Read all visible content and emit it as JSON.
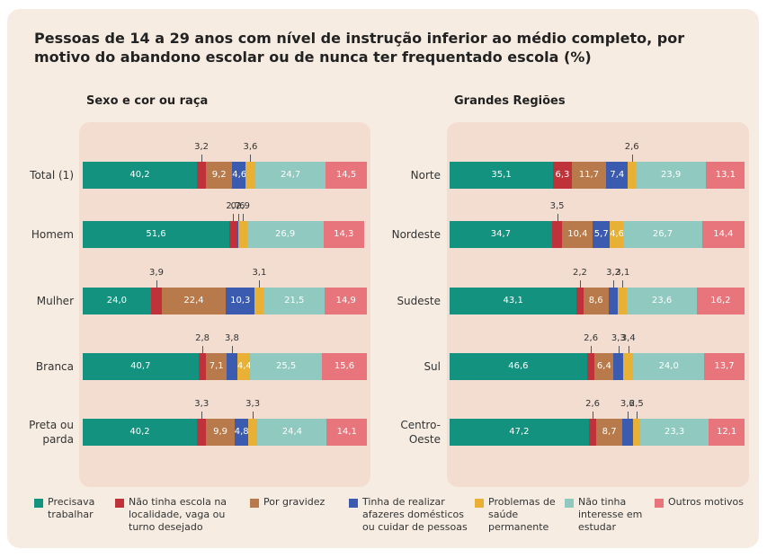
{
  "title": "Pessoas de 14 a 29 anos com nível de instrução inferior ao médio completo, por motivo do abandono escolar ou de nunca ter frequentado escola (%)",
  "chart_data": [
    {
      "type": "bar",
      "title": "Sexo e cor ou raça",
      "categories": [
        "Total (1)",
        "Homem",
        "Mulher",
        "Branca",
        "Preta ou parda"
      ],
      "series": [
        {
          "name": "Precisava trabalhar",
          "color": "#13937f",
          "values": [
            40.2,
            51.6,
            24.0,
            40.7,
            40.2
          ],
          "value_labels": [
            "40,2",
            "51,6",
            "24,0",
            "40,7",
            "40,2"
          ]
        },
        {
          "name": "Não tinha escola na localidade, vaga ou turno desejado",
          "color": "#c0323a",
          "values": [
            3.2,
            2.7,
            3.9,
            2.8,
            3.3
          ],
          "value_labels": [
            "3,2",
            "2,7",
            "3,9",
            "2,8",
            "3,3"
          ]
        },
        {
          "name": "Por gravidez",
          "color": "#b87a4a",
          "values": [
            9.2,
            null,
            22.4,
            7.1,
            9.9
          ],
          "value_labels": [
            "9,2",
            null,
            "22,4",
            "7,1",
            "9,9"
          ]
        },
        {
          "name": "Tinha de realizar afazeres domésticos ou cuidar de pessoas",
          "color": "#3a5bb0",
          "values": [
            4.6,
            0.6,
            10.3,
            3.8,
            4.8
          ],
          "value_labels": [
            "4,6",
            "0,6",
            "10,3",
            "3,8",
            "4,8"
          ]
        },
        {
          "name": "Problemas de saúde permanente",
          "color": "#e8b034",
          "values": [
            3.6,
            2.9,
            3.1,
            4.4,
            3.3
          ],
          "value_labels": [
            "3,6",
            "2,9",
            "3,1",
            "4,4",
            "3,3"
          ]
        },
        {
          "name": "Não tinha interesse em estudar",
          "color": "#8fc9c0",
          "values": [
            24.7,
            26.9,
            21.5,
            25.5,
            24.4
          ],
          "value_labels": [
            "24,7",
            "26,9",
            "21,5",
            "25,5",
            "24,4"
          ]
        },
        {
          "name": "Outros motivos",
          "color": "#e8757b",
          "values": [
            14.5,
            14.3,
            14.9,
            15.6,
            14.1
          ],
          "value_labels": [
            "14,5",
            "14,3",
            "14,9",
            "15,6",
            "14,1"
          ]
        }
      ]
    },
    {
      "type": "bar",
      "title": "Grandes Regiões",
      "categories": [
        "Norte",
        "Nordeste",
        "Sudeste",
        "Sul",
        "Centro-Oeste"
      ],
      "series": [
        {
          "name": "Precisava trabalhar",
          "color": "#13937f",
          "values": [
            35.1,
            34.7,
            43.1,
            46.6,
            47.2
          ],
          "value_labels": [
            "35,1",
            "34,7",
            "43,1",
            "46,6",
            "47,2"
          ]
        },
        {
          "name": "Não tinha escola na localidade, vaga ou turno desejado",
          "color": "#c0323a",
          "values": [
            6.3,
            3.5,
            2.2,
            2.6,
            2.6
          ],
          "value_labels": [
            "6,3",
            "3,5",
            "2,2",
            "2,6",
            "2,6"
          ]
        },
        {
          "name": "Por gravidez",
          "color": "#b87a4a",
          "values": [
            11.7,
            10.4,
            8.6,
            6.4,
            8.7
          ],
          "value_labels": [
            "11,7",
            "10,4",
            "8,6",
            "6,4",
            "8,7"
          ]
        },
        {
          "name": "Tinha de realizar afazeres domésticos ou cuidar de pessoas",
          "color": "#3a5bb0",
          "values": [
            7.4,
            5.7,
            3.2,
            3.3,
            3.6
          ],
          "value_labels": [
            "7,4",
            "5,7",
            "3,2",
            "3,3",
            "3,6"
          ]
        },
        {
          "name": "Problemas de saúde permanente",
          "color": "#e8b034",
          "values": [
            2.6,
            4.6,
            3.1,
            3.4,
            2.5
          ],
          "value_labels": [
            "2,6",
            "4,6",
            "3,1",
            "3,4",
            "2,5"
          ]
        },
        {
          "name": "Não tinha interesse em estudar",
          "color": "#8fc9c0",
          "values": [
            23.9,
            26.7,
            23.6,
            24.0,
            23.3
          ],
          "value_labels": [
            "23,9",
            "26,7",
            "23,6",
            "24,0",
            "23,3"
          ]
        },
        {
          "name": "Outros motivos",
          "color": "#e8757b",
          "values": [
            13.1,
            14.4,
            16.2,
            13.7,
            12.1
          ],
          "value_labels": [
            "13,1",
            "14,4",
            "16,2",
            "13,7",
            "12,1"
          ]
        }
      ]
    }
  ]
}
